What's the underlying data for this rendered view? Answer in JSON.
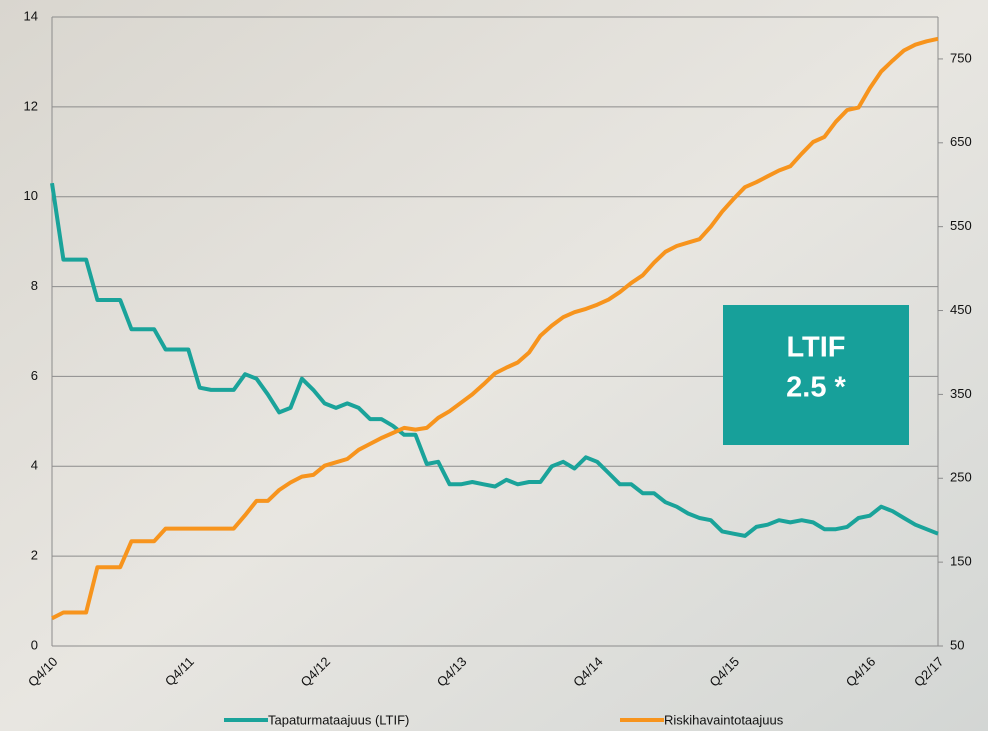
{
  "chart_data": {
    "type": "line",
    "categories": [
      "Q4/10",
      null,
      null,
      null,
      null,
      null,
      null,
      null,
      null,
      null,
      null,
      null,
      "Q4/11",
      null,
      null,
      null,
      null,
      null,
      null,
      null,
      null,
      null,
      null,
      null,
      "Q4/12",
      null,
      null,
      null,
      null,
      null,
      null,
      null,
      null,
      null,
      null,
      null,
      "Q4/13",
      null,
      null,
      null,
      null,
      null,
      null,
      null,
      null,
      null,
      null,
      null,
      "Q4/14",
      null,
      null,
      null,
      null,
      null,
      null,
      null,
      null,
      null,
      null,
      null,
      "Q4/15",
      null,
      null,
      null,
      null,
      null,
      null,
      null,
      null,
      null,
      null,
      null,
      "Q4/16",
      null,
      null,
      null,
      null,
      null,
      "Q2/17"
    ],
    "series": [
      {
        "name": "Tapaturmataajuus (LTIF)",
        "color": "#1aa39a",
        "axis": "y",
        "values": [
          10.3,
          8.6,
          8.6,
          8.6,
          7.7,
          7.7,
          7.7,
          7.05,
          7.05,
          7.05,
          6.6,
          6.6,
          6.6,
          5.75,
          5.7,
          5.7,
          5.7,
          6.05,
          5.95,
          5.6,
          5.2,
          5.3,
          5.95,
          5.7,
          5.4,
          5.3,
          5.4,
          5.3,
          5.05,
          5.05,
          4.9,
          4.7,
          4.7,
          4.05,
          4.1,
          3.6,
          3.6,
          3.65,
          3.6,
          3.55,
          3.7,
          3.6,
          3.65,
          3.65,
          4.0,
          4.1,
          3.95,
          4.2,
          4.1,
          3.85,
          3.6,
          3.6,
          3.4,
          3.4,
          3.2,
          3.1,
          2.95,
          2.85,
          2.8,
          2.55,
          2.5,
          2.45,
          2.65,
          2.7,
          2.8,
          2.75,
          2.8,
          2.75,
          2.6,
          2.6,
          2.65,
          2.85,
          2.9,
          3.1,
          3.0,
          2.85,
          2.7,
          2.6,
          2.5
        ]
      },
      {
        "name": "Riskihavaintotaajuus",
        "color": "#f7941d",
        "axis": "y2",
        "values": [
          83,
          90,
          90,
          90,
          144,
          144,
          144,
          175,
          175,
          175,
          190,
          190,
          190,
          190,
          190,
          190,
          190,
          206,
          223,
          223,
          236,
          245,
          252,
          254,
          265,
          269,
          273,
          284,
          291,
          298,
          304,
          310,
          308,
          310,
          322,
          330,
          340,
          350,
          362,
          375,
          382,
          388,
          400,
          420,
          432,
          442,
          448,
          452,
          457,
          463,
          472,
          483,
          492,
          507,
          520,
          527,
          531,
          535,
          550,
          568,
          583,
          597,
          603,
          610,
          617,
          622,
          637,
          651,
          657,
          675,
          689,
          692,
          715,
          735,
          748,
          760,
          767,
          771,
          774
        ]
      }
    ],
    "ylim": [
      0,
      14
    ],
    "yticks": [
      0,
      2,
      4,
      6,
      8,
      10,
      12,
      14
    ],
    "y2lim": [
      50,
      800
    ],
    "y2ticks": [
      50,
      150,
      250,
      350,
      450,
      550,
      650,
      750
    ],
    "grid": true,
    "annotation": [
      "LTIF",
      "2.5 *"
    ],
    "annotation_color": "#17a09a"
  }
}
